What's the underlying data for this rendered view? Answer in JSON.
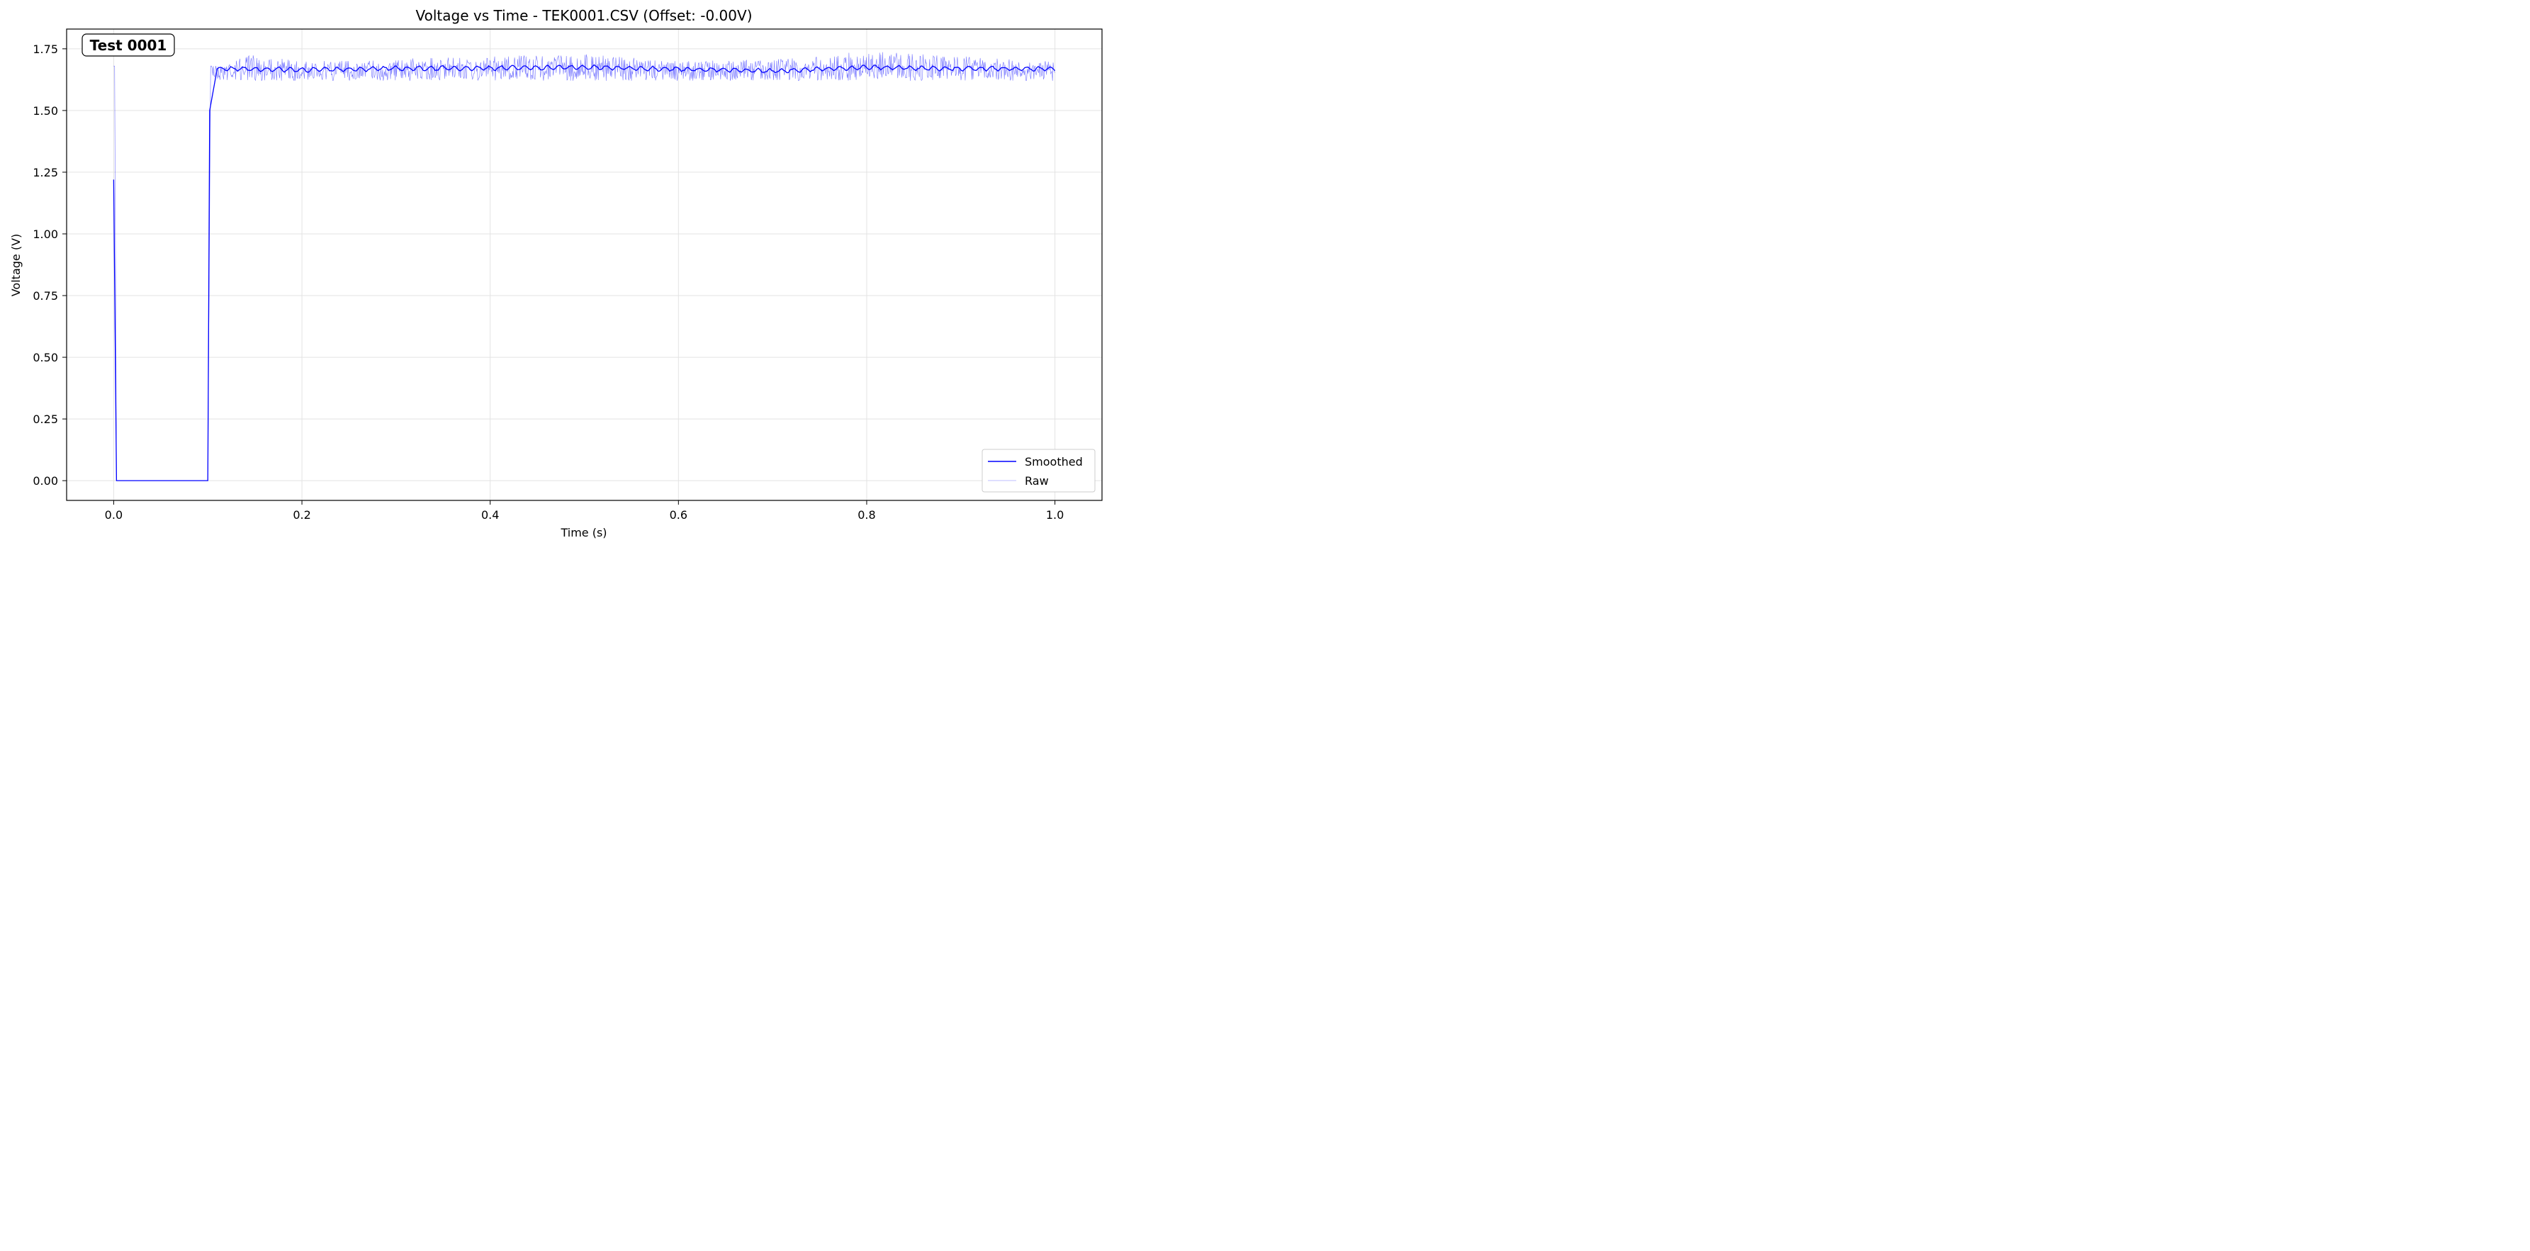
{
  "chart_data": {
    "type": "line",
    "title": "Voltage vs Time - TEK0001.CSV (Offset: -0.00V)",
    "xlabel": "Time (s)",
    "ylabel": "Voltage (V)",
    "xlim": [
      -0.05,
      1.05
    ],
    "ylim": [
      -0.08,
      1.83
    ],
    "x_ticks": [
      0.0,
      0.2,
      0.4,
      0.6,
      0.8,
      1.0
    ],
    "x_tick_labels": [
      "0.0",
      "0.2",
      "0.4",
      "0.6",
      "0.8",
      "1.0"
    ],
    "y_ticks": [
      0.0,
      0.25,
      0.5,
      0.75,
      1.0,
      1.25,
      1.5,
      1.75
    ],
    "y_tick_labels": [
      "0.00",
      "0.25",
      "0.50",
      "0.75",
      "1.00",
      "1.25",
      "1.50",
      "1.75"
    ],
    "grid": true,
    "legend_placement": "lower-right",
    "annotation": "Test 0001",
    "series": [
      {
        "name": "Smoothed",
        "color": "#0000ff",
        "x": [
          0.0,
          0.003,
          0.1,
          0.102,
          0.11,
          0.2,
          0.3,
          0.4,
          0.5,
          0.6,
          0.7,
          0.8,
          0.9,
          1.0
        ],
        "y": [
          1.22,
          0.0,
          0.0,
          1.5,
          1.67,
          1.665,
          1.67,
          1.672,
          1.675,
          1.668,
          1.66,
          1.675,
          1.67,
          1.668
        ]
      },
      {
        "name": "Raw",
        "color": "#0000ff",
        "x": [
          0.0,
          0.001,
          0.003,
          0.1,
          0.103,
          0.15,
          0.2,
          0.3,
          0.4,
          0.5,
          0.6,
          0.7,
          0.8,
          0.9,
          1.0
        ],
        "y": [
          1.68,
          1.68,
          0.0,
          0.0,
          1.68,
          1.73,
          1.7,
          1.71,
          1.72,
          1.73,
          1.7,
          1.71,
          1.74,
          1.72,
          1.7
        ],
        "noise_amplitude": 0.04
      }
    ]
  }
}
